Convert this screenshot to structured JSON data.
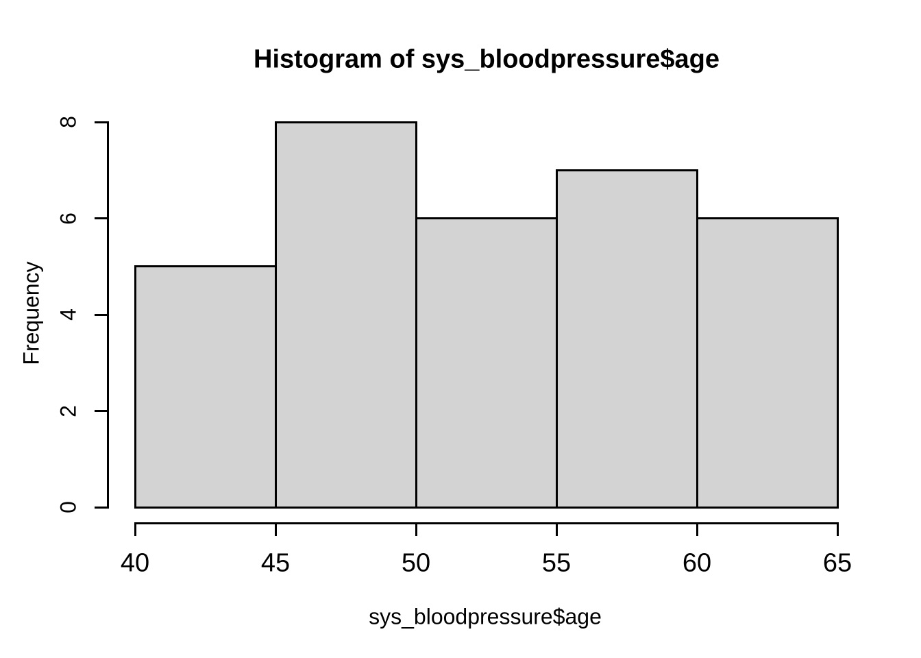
{
  "figure": {
    "background": "#FFFFFF",
    "text_color": "#000000"
  },
  "chart_data": {
    "type": "bar",
    "subtype": "histogram",
    "title": "Histogram of sys_bloodpressure$age",
    "xlabel": "sys_bloodpressure$age",
    "ylabel": "Frequency",
    "bin_edges": [
      40,
      45,
      50,
      55,
      60,
      65
    ],
    "counts": [
      5,
      8,
      6,
      7,
      6
    ],
    "x_ticks": [
      40,
      45,
      50,
      55,
      60,
      65
    ],
    "y_ticks": [
      0,
      2,
      4,
      6,
      8
    ],
    "xlim": [
      40,
      65
    ],
    "ylim": [
      0,
      8
    ],
    "grid": false,
    "legend": null,
    "bar_fill": "#D3D3D3",
    "bar_stroke": "#000000",
    "axis_color": "#000000"
  }
}
